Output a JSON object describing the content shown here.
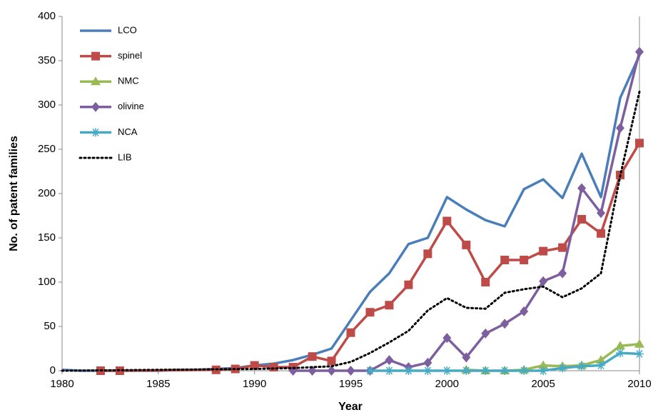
{
  "chart_data": {
    "type": "line",
    "x_label": "Year",
    "y_label": "No. of patent families",
    "xlim": [
      1980,
      2010
    ],
    "xticks": [
      1980,
      1985,
      1990,
      1995,
      2000,
      2005,
      2010
    ],
    "ylim": [
      0,
      400
    ],
    "yticks": [
      0,
      50,
      100,
      150,
      200,
      250,
      300,
      350,
      400
    ],
    "grid": false,
    "legend": "upper left",
    "series": [
      {
        "name": "LCO",
        "color": "#4a7ebb",
        "marker": "none",
        "dash": "solid",
        "x": [
          1980,
          1981,
          1982,
          1983,
          1984,
          1985,
          1986,
          1987,
          1988,
          1989,
          1990,
          1991,
          1992,
          1993,
          1994,
          1995,
          1996,
          1997,
          1998,
          1999,
          2000,
          2001,
          2002,
          2003,
          2004,
          2005,
          2006,
          2007,
          2008,
          2009,
          2010
        ],
        "values": [
          1,
          0,
          0,
          0,
          0,
          0,
          1,
          1,
          2,
          3,
          6,
          8,
          12,
          18,
          25,
          57,
          89,
          110,
          143,
          150,
          196,
          182,
          170,
          163,
          205,
          216,
          195,
          245,
          196,
          308,
          356
        ]
      },
      {
        "name": "spinel",
        "color": "#be4b48",
        "marker": "square",
        "dash": "solid",
        "x": [
          1982,
          1983,
          1988,
          1989,
          1990,
          1991,
          1992,
          1993,
          1994,
          1995,
          1996,
          1997,
          1998,
          1999,
          2000,
          2001,
          2002,
          2003,
          2004,
          2005,
          2006,
          2007,
          2008,
          2009,
          2010
        ],
        "values": [
          0,
          0,
          1,
          2,
          6,
          4,
          4,
          16,
          11,
          43,
          66,
          74,
          97,
          132,
          169,
          142,
          100,
          125,
          125,
          135,
          139,
          171,
          155,
          221,
          257
        ]
      },
      {
        "name": "NMC",
        "color": "#98b954",
        "marker": "triangle",
        "dash": "solid",
        "x": [
          2001,
          2002,
          2003,
          2004,
          2005,
          2006,
          2007,
          2008,
          2009,
          2010
        ],
        "values": [
          1,
          0,
          0,
          1,
          6,
          5,
          6,
          12,
          28,
          30
        ]
      },
      {
        "name": "olivine",
        "color": "#7d5fa0",
        "marker": "diamond",
        "dash": "solid",
        "x": [
          1992,
          1993,
          1994,
          1995,
          1996,
          1997,
          1998,
          1999,
          2000,
          2001,
          2002,
          2003,
          2004,
          2005,
          2006,
          2007,
          2008,
          2009,
          2010
        ],
        "values": [
          0,
          0,
          0,
          0,
          0,
          12,
          4,
          9,
          37,
          15,
          42,
          53,
          67,
          101,
          110,
          206,
          178,
          274,
          360
        ]
      },
      {
        "name": "NCA",
        "color": "#46aac5",
        "marker": "asterisk",
        "dash": "solid",
        "x": [
          1996,
          1997,
          1998,
          1999,
          2000,
          2001,
          2002,
          2003,
          2004,
          2005,
          2006,
          2007,
          2008,
          2009,
          2010
        ],
        "values": [
          0,
          0,
          0,
          0,
          0,
          0,
          0,
          0,
          0,
          0,
          3,
          5,
          6,
          20,
          19
        ]
      },
      {
        "name": "LIB",
        "color": "#000000",
        "marker": "none",
        "dash": "dotted",
        "x": [
          1980,
          1985,
          1990,
          1992,
          1994,
          1995,
          1996,
          1997,
          1998,
          1999,
          2000,
          2001,
          2002,
          2003,
          2004,
          2005,
          2006,
          2007,
          2008,
          2009,
          2010
        ],
        "values": [
          0,
          1,
          2,
          3,
          5,
          10,
          20,
          32,
          45,
          68,
          82,
          71,
          70,
          88,
          92,
          95,
          83,
          93,
          110,
          220,
          315
        ]
      }
    ]
  }
}
